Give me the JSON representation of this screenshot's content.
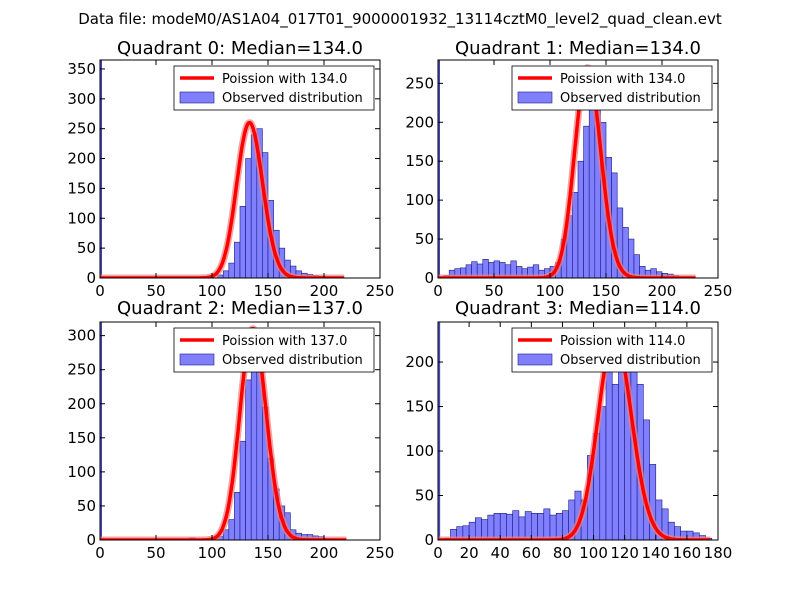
{
  "figure": {
    "suptitle": "Data file: modeM0/AS1A04_017T01_9000001932_13114cztM0_level2_quad_clean.evt"
  },
  "colors": {
    "poisson_line": "#ff0000",
    "poisson_highlight": "#f08080",
    "bar_fill": "#8080ff",
    "bar_edge": "#1a1a80",
    "first_bin_fill": "#5c5ce0"
  },
  "chart_data": [
    {
      "type": "bar",
      "title": "Quadrant 0: Median=134.0",
      "xlim": [
        0,
        250
      ],
      "ylim": [
        0,
        365
      ],
      "xticks": [
        "0",
        "50",
        "100",
        "150",
        "200",
        "250"
      ],
      "yticks": [
        "0",
        "50",
        "100",
        "150",
        "200",
        "250",
        "300",
        "350"
      ],
      "legend": {
        "position": "top-right",
        "entries": [
          "Poission with 134.0",
          "Observed distribution"
        ]
      },
      "bin_width": 5,
      "first_bin": {
        "x": 0,
        "width": 1.5,
        "value": 365
      },
      "bin_starts": [
        105,
        110,
        115,
        120,
        125,
        130,
        135,
        140,
        145,
        150,
        155,
        160,
        165,
        170,
        175,
        180,
        185,
        190,
        195,
        200
      ],
      "values": [
        5,
        12,
        25,
        60,
        120,
        200,
        240,
        250,
        210,
        130,
        80,
        50,
        30,
        20,
        12,
        8,
        6,
        4,
        3,
        2
      ],
      "poisson": {
        "lambda": 134.0,
        "peak": 260,
        "x_range": [
          0,
          218
        ]
      }
    },
    {
      "type": "bar",
      "title": "Quadrant 1: Median=134.0",
      "xlim": [
        0,
        250
      ],
      "ylim": [
        0,
        280
      ],
      "xticks": [
        "0",
        "50",
        "100",
        "150",
        "200",
        "250"
      ],
      "yticks": [
        "0",
        "50",
        "100",
        "150",
        "200",
        "250"
      ],
      "legend": {
        "position": "top-right",
        "entries": [
          "Poission with 134.0",
          "Observed distribution"
        ]
      },
      "bin_width": 5,
      "first_bin": {
        "x": 0,
        "width": 1.5,
        "value": 280
      },
      "bin_starts": [
        5,
        10,
        15,
        20,
        25,
        30,
        35,
        40,
        45,
        50,
        55,
        60,
        65,
        70,
        75,
        80,
        85,
        90,
        95,
        100,
        105,
        110,
        115,
        120,
        125,
        130,
        135,
        140,
        145,
        150,
        155,
        160,
        165,
        170,
        175,
        180,
        185,
        190,
        195,
        200,
        205,
        210
      ],
      "values": [
        3,
        10,
        12,
        13,
        17,
        21,
        18,
        24,
        20,
        22,
        20,
        17,
        22,
        15,
        12,
        14,
        17,
        10,
        12,
        15,
        20,
        50,
        80,
        110,
        150,
        195,
        230,
        215,
        200,
        155,
        135,
        90,
        65,
        50,
        30,
        15,
        10,
        12,
        8,
        6,
        5,
        3
      ],
      "poisson": {
        "lambda": 134.0,
        "peak": 270,
        "x_range": [
          0,
          230
        ]
      }
    },
    {
      "type": "bar",
      "title": "Quadrant 2: Median=137.0",
      "xlim": [
        0,
        250
      ],
      "ylim": [
        0,
        320
      ],
      "xticks": [
        "0",
        "50",
        "100",
        "150",
        "200",
        "250"
      ],
      "yticks": [
        "0",
        "50",
        "100",
        "150",
        "200",
        "250",
        "300"
      ],
      "legend": {
        "position": "top-right",
        "entries": [
          "Poission with 137.0",
          "Observed distribution"
        ]
      },
      "bin_width": 5,
      "first_bin": {
        "x": 0,
        "width": 1.5,
        "value": 320
      },
      "bin_starts": [
        80,
        105,
        110,
        115,
        120,
        125,
        130,
        135,
        140,
        145,
        150,
        155,
        160,
        165,
        170,
        175,
        180,
        185,
        190,
        195,
        200
      ],
      "values": [
        3,
        5,
        15,
        30,
        70,
        145,
        235,
        270,
        260,
        195,
        120,
        75,
        50,
        40,
        15,
        10,
        8,
        8,
        6,
        5,
        2
      ],
      "poisson": {
        "lambda": 137.0,
        "peak": 310,
        "x_range": [
          0,
          220
        ]
      }
    },
    {
      "type": "bar",
      "title": "Quadrant 3: Median=114.0",
      "xlim": [
        0,
        180
      ],
      "ylim": [
        0,
        245
      ],
      "xticks": [
        "0",
        "20",
        "40",
        "60",
        "80",
        "100",
        "120",
        "140",
        "160",
        "180"
      ],
      "yticks": [
        "0",
        "50",
        "100",
        "150",
        "200"
      ],
      "legend": {
        "position": "top-right",
        "entries": [
          "Poission with 114.0",
          "Observed distribution"
        ]
      },
      "bin_width": 4,
      "first_bin": {
        "x": 0,
        "width": 1.2,
        "value": 245
      },
      "bin_starts": [
        4,
        8,
        12,
        16,
        20,
        24,
        28,
        32,
        36,
        40,
        44,
        48,
        52,
        56,
        60,
        64,
        68,
        72,
        76,
        80,
        84,
        88,
        92,
        96,
        100,
        104,
        108,
        112,
        116,
        120,
        124,
        128,
        132,
        136,
        140,
        144,
        148,
        152,
        156,
        160,
        164,
        168,
        172
      ],
      "values": [
        2,
        12,
        15,
        16,
        20,
        25,
        23,
        28,
        30,
        30,
        29,
        33,
        26,
        32,
        30,
        30,
        35,
        28,
        30,
        33,
        45,
        55,
        45,
        95,
        120,
        150,
        200,
        175,
        220,
        190,
        210,
        175,
        135,
        85,
        45,
        35,
        20,
        15,
        10,
        10,
        8,
        5,
        2
      ],
      "poisson": {
        "lambda": 114.0,
        "peak": 230,
        "x_range": [
          0,
          175
        ]
      }
    }
  ]
}
